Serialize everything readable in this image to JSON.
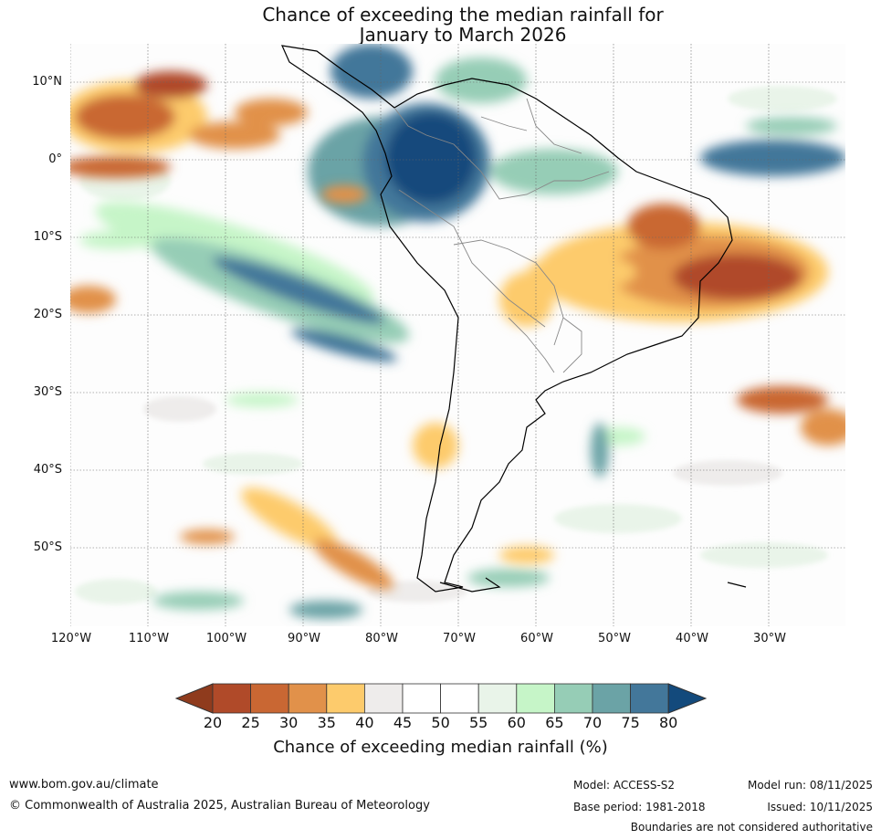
{
  "title": {
    "line1": "Chance of exceeding the median rainfall for",
    "line2": "January to March 2026"
  },
  "map": {
    "region": "South America",
    "lat_labels": [
      "10°N",
      "0°",
      "10°S",
      "20°S",
      "30°S",
      "40°S",
      "50°S"
    ],
    "lon_labels": [
      "120°W",
      "110°W",
      "100°W",
      "90°W",
      "80°W",
      "70°W",
      "60°W",
      "50°W",
      "40°W",
      "30°W"
    ]
  },
  "colorbar": {
    "label": "Chance of exceeding median rainfall (%)",
    "ticks": [
      "20",
      "25",
      "30",
      "35",
      "40",
      "45",
      "50",
      "55",
      "60",
      "65",
      "70",
      "75",
      "80"
    ],
    "colors": [
      "#8f3b1d",
      "#b04a29",
      "#c96733",
      "#e1914a",
      "#fdcb6c",
      "#eeeceb",
      "#ffffff",
      "#ffffff",
      "#e9f4e9",
      "#c6f5c8",
      "#96cdb6",
      "#6ba3a6",
      "#43779a",
      "#134a7c"
    ]
  },
  "footer": {
    "website": "www.bom.gov.au/climate",
    "copyright": "© Commonwealth of Australia 2025, Australian Bureau of Meteorology",
    "model": "Model: ACCESS-S2",
    "base_period": "Base period: 1981-2018",
    "model_run": "Model run: 08/11/2025",
    "issued": "Issued: 10/11/2025",
    "boundaries_note": "Boundaries are not considered authoritative"
  }
}
